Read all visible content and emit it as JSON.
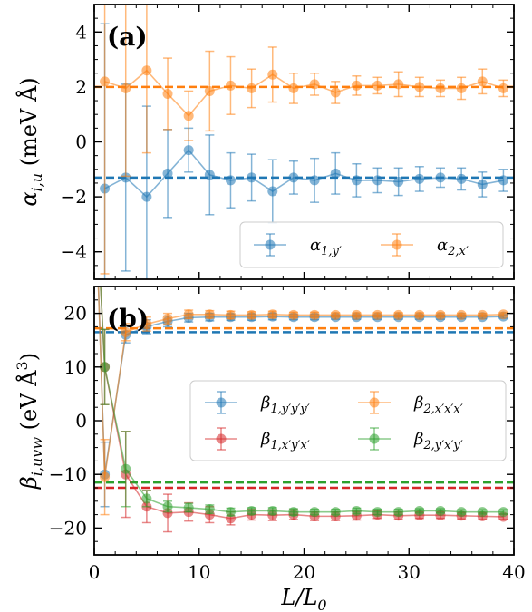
{
  "chart_data": [
    {
      "type": "scatter",
      "panel_label": "(a)",
      "ylabel_main": "α",
      "ylabel_sub": "i,u",
      "ylabel_rest": " (meV Å)",
      "xlim": [
        0,
        40
      ],
      "ylim": [
        -5,
        5
      ],
      "yticks": [
        -4,
        -2,
        0,
        2,
        4
      ],
      "legend_position": "lower-right",
      "series": [
        {
          "name": "α",
          "name_sub": "1,y′",
          "color": "#1f77b4",
          "x": [
            1,
            3,
            5,
            7,
            9,
            11,
            13,
            15,
            17,
            19,
            21,
            23,
            25,
            27,
            29,
            31,
            33,
            35,
            37,
            39
          ],
          "y": [
            -1.7,
            -1.3,
            -2.0,
            -1.15,
            -0.3,
            -1.2,
            -1.4,
            -1.3,
            -1.8,
            -1.3,
            -1.4,
            -1.15,
            -1.4,
            -1.4,
            -1.45,
            -1.35,
            -1.3,
            -1.35,
            -1.55,
            -1.4
          ],
          "err": [
            6.0,
            3.4,
            3.3,
            1.6,
            0.8,
            1.45,
            1.0,
            0.85,
            1.15,
            0.6,
            0.8,
            0.75,
            0.6,
            0.45,
            0.5,
            0.45,
            0.35,
            0.4,
            0.45,
            0.4
          ],
          "reference": -1.3
        },
        {
          "name": "α",
          "name_sub": "2,x′",
          "color": "#ff7f0e",
          "x": [
            1,
            3,
            5,
            7,
            9,
            11,
            13,
            15,
            17,
            19,
            21,
            23,
            25,
            27,
            29,
            31,
            33,
            35,
            37,
            39
          ],
          "y": [
            2.2,
            1.95,
            2.6,
            1.75,
            0.95,
            1.85,
            2.05,
            1.95,
            2.45,
            1.95,
            2.1,
            1.8,
            2.05,
            2.05,
            2.1,
            2.0,
            1.95,
            1.95,
            2.2,
            1.95
          ],
          "err": [
            7.0,
            3.2,
            3.0,
            1.3,
            0.9,
            1.45,
            1.05,
            0.7,
            1.0,
            0.55,
            0.4,
            0.4,
            0.35,
            0.3,
            0.45,
            0.35,
            0.3,
            0.4,
            0.45,
            0.3
          ],
          "reference": 2.0
        }
      ]
    },
    {
      "type": "line",
      "panel_label": "(b)",
      "ylabel_main": "β",
      "ylabel_sub": "i,uvw",
      "ylabel_rest": " (eV Å",
      "ylabel_sup": "3",
      "ylabel_close": ")",
      "xlabel": "L/L",
      "xlabel_sub": "0",
      "xlim": [
        0,
        40
      ],
      "ylim": [
        -25,
        25
      ],
      "yticks": [
        -20,
        -10,
        0,
        10,
        20
      ],
      "xticks": [
        0,
        10,
        20,
        30,
        40
      ],
      "legend_position": "center-right",
      "series": [
        {
          "name": "β",
          "name_sub": "1,y′y′y′",
          "color": "#1f77b4",
          "x": [
            1,
            3,
            5,
            7,
            9,
            11,
            13,
            15,
            17,
            19,
            21,
            23,
            25,
            27,
            29,
            31,
            33,
            35,
            37,
            39
          ],
          "y": [
            -10,
            16,
            17.5,
            18.5,
            19.2,
            19.3,
            19.3,
            19.3,
            19.4,
            19.3,
            19.3,
            19.3,
            19.3,
            19.3,
            19.3,
            19.3,
            19.3,
            19.3,
            19.3,
            19.4
          ],
          "err": [
            6.0,
            1.5,
            1.3,
            1.0,
            0.8,
            0.7,
            0.6,
            0.6,
            0.6,
            0.5,
            0.5,
            0.4,
            0.4,
            0.4,
            0.4,
            0.4,
            0.4,
            0.3,
            0.3,
            0.3
          ],
          "reference": 16.5,
          "start": 48
        },
        {
          "name": "β",
          "name_sub": "2,x′x′x′",
          "color": "#ff7f0e",
          "x": [
            1,
            3,
            5,
            7,
            9,
            11,
            13,
            15,
            17,
            19,
            21,
            23,
            25,
            27,
            29,
            31,
            33,
            35,
            37,
            39
          ],
          "y": [
            -10.5,
            16.5,
            18.0,
            19.0,
            19.8,
            19.8,
            19.7,
            19.7,
            19.8,
            19.7,
            19.7,
            19.7,
            19.7,
            19.7,
            19.7,
            19.7,
            19.7,
            19.7,
            19.7,
            19.8
          ],
          "err": [
            7.0,
            1.6,
            1.3,
            1.0,
            0.8,
            0.7,
            0.7,
            0.6,
            0.6,
            0.5,
            0.5,
            0.4,
            0.4,
            0.4,
            0.4,
            0.4,
            0.4,
            0.3,
            0.3,
            0.3
          ],
          "reference": 17.2,
          "start": 48
        },
        {
          "name": "β",
          "name_sub": "1,x′y′x′",
          "color": "#d62728",
          "x": [
            1,
            3,
            5,
            7,
            9,
            11,
            13,
            15,
            17,
            19,
            21,
            23,
            25,
            27,
            29,
            31,
            33,
            35,
            37,
            39
          ],
          "y": [
            10,
            -10,
            -16,
            -17.2,
            -17.0,
            -17.5,
            -18.2,
            -17.5,
            -17.6,
            -17.5,
            -17.8,
            -17.8,
            -17.7,
            -17.5,
            -17.7,
            -17.6,
            -17.6,
            -17.7,
            -17.8,
            -17.9
          ],
          "err": [
            7.0,
            8.0,
            3.0,
            3.5,
            1.7,
            1.5,
            1.2,
            1.0,
            1.0,
            0.9,
            0.8,
            0.8,
            0.8,
            0.7,
            0.7,
            0.6,
            0.6,
            0.6,
            0.6,
            0.5
          ],
          "reference": -12.5,
          "start": 48
        },
        {
          "name": "β",
          "name_sub": "2,y′x′y′",
          "color": "#2ca02c",
          "x": [
            1,
            3,
            5,
            7,
            9,
            11,
            13,
            15,
            17,
            19,
            21,
            23,
            25,
            27,
            29,
            31,
            33,
            35,
            37,
            39
          ],
          "y": [
            10,
            -9,
            -14.5,
            -16,
            -16.2,
            -16.5,
            -17.0,
            -16.8,
            -16.8,
            -17.0,
            -17.0,
            -17.0,
            -16.8,
            -17.0,
            -17.0,
            -16.8,
            -16.8,
            -17.0,
            -17.0,
            -17.0
          ],
          "err": [
            7.0,
            7.0,
            1.5,
            1.0,
            0.8,
            0.8,
            0.7,
            0.6,
            0.6,
            0.6,
            0.5,
            0.5,
            0.5,
            0.5,
            0.5,
            0.4,
            0.4,
            0.4,
            0.4,
            0.4
          ],
          "reference": -11.5,
          "start": 48
        }
      ]
    }
  ]
}
